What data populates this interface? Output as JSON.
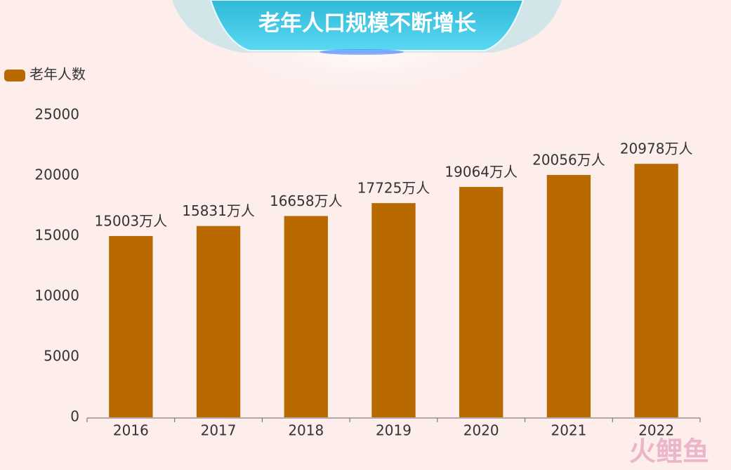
{
  "chart_data": {
    "type": "bar",
    "title": "老年人口规模不断增长",
    "legend": "老年人数",
    "legend_position": "top-left",
    "categories": [
      "2016",
      "2017",
      "2018",
      "2019",
      "2020",
      "2021",
      "2022"
    ],
    "series": [
      {
        "name": "老年人数",
        "color": "#b86a00",
        "values": [
          15003,
          15831,
          16658,
          17725,
          19064,
          20056,
          20978
        ],
        "value_labels": [
          "15003万人",
          "15831万人",
          "16658万人",
          "17725万人",
          "19064万人",
          "20056万人",
          "20978万人"
        ]
      }
    ],
    "ylim": [
      0,
      25000
    ],
    "yticks": [
      0,
      5000,
      10000,
      15000,
      20000,
      25000
    ],
    "grid": false,
    "watermark": "火鲤鱼"
  }
}
